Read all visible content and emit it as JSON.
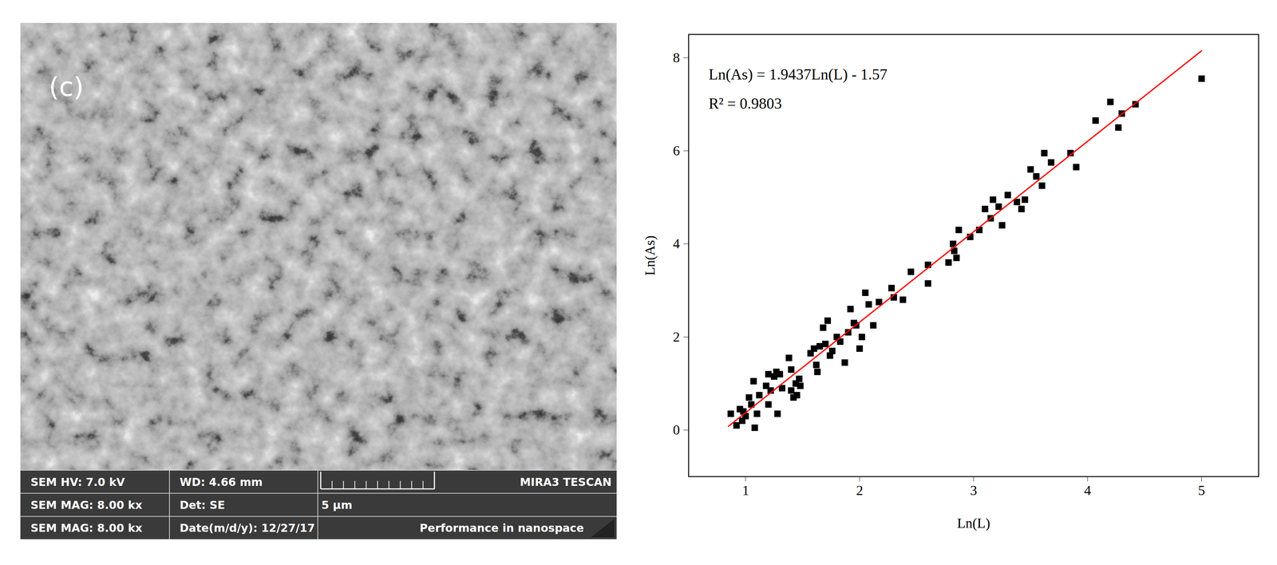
{
  "sem_image": {
    "panel_label": "(c)",
    "info_bar": [
      [
        "SEM HV: 7.0 kV",
        "WD: 4.66 mm",
        "MIRA3 TESCAN"
      ],
      [
        "SEM MAG: 8.00 kx",
        "Det: SE",
        "5 μm"
      ],
      [
        "SEM MAG: 8.00 kx",
        "Date(m/d/y): 12/27/17",
        "Performance in nanospace"
      ]
    ]
  },
  "chart_data": {
    "type": "scatter",
    "x_label": "Ln(L)",
    "y_label": "Ln(As)",
    "annotations": [
      "Ln(As) = 1.9437Ln(L) - 1.57",
      "R² = 0.9803"
    ],
    "x": [
      0.87,
      0.92,
      0.95,
      0.97,
      0.98,
      1.0,
      1.03,
      1.05,
      1.07,
      1.08,
      1.1,
      1.12,
      1.18,
      1.2,
      1.2,
      1.22,
      1.25,
      1.27,
      1.28,
      1.3,
      1.32,
      1.38,
      1.4,
      1.4,
      1.42,
      1.44,
      1.45,
      1.47,
      1.48,
      1.57,
      1.6,
      1.62,
      1.63,
      1.65,
      1.68,
      1.7,
      1.72,
      1.74,
      1.76,
      1.8,
      1.83,
      1.87,
      1.9,
      1.92,
      1.95,
      1.97,
      2.0,
      2.02,
      2.05,
      2.08,
      2.12,
      2.17,
      2.28,
      2.3,
      2.38,
      2.45,
      2.6,
      2.6,
      2.78,
      2.82,
      2.83,
      2.85,
      2.87,
      2.97,
      3.05,
      3.1,
      3.15,
      3.17,
      3.22,
      3.25,
      3.3,
      3.38,
      3.42,
      3.45,
      3.5,
      3.55,
      3.6,
      3.62,
      3.68,
      3.85,
      3.9,
      4.07,
      4.2,
      4.27,
      4.3,
      4.42,
      5.0
    ],
    "values": [
      0.35,
      0.1,
      0.45,
      0.2,
      0.4,
      0.3,
      0.7,
      0.55,
      1.05,
      0.05,
      0.35,
      0.75,
      0.95,
      1.2,
      0.55,
      0.85,
      1.15,
      1.25,
      0.35,
      1.2,
      0.9,
      1.55,
      1.3,
      0.85,
      0.7,
      1.0,
      0.75,
      1.1,
      0.95,
      1.65,
      1.75,
      1.4,
      1.25,
      1.8,
      2.2,
      1.85,
      2.35,
      1.6,
      1.7,
      2.0,
      1.9,
      1.45,
      2.1,
      2.6,
      2.3,
      2.25,
      1.75,
      2.0,
      2.95,
      2.7,
      2.25,
      2.75,
      3.05,
      2.85,
      2.8,
      3.4,
      3.55,
      3.15,
      3.6,
      4.0,
      3.85,
      3.7,
      4.3,
      4.15,
      4.3,
      4.75,
      4.55,
      4.95,
      4.8,
      4.4,
      5.05,
      4.9,
      4.75,
      4.95,
      5.6,
      5.45,
      5.25,
      5.95,
      5.75,
      5.95,
      5.65,
      6.65,
      7.05,
      6.5,
      6.8,
      7.0,
      7.55
    ],
    "color": "#000000",
    "marker": "square",
    "fit": {
      "type": "line",
      "x": [
        0.85,
        5.0
      ],
      "values": [
        0.082145,
        8.1485
      ],
      "color": "#ff0000"
    },
    "xlim": [
      0.5,
      5.5
    ],
    "xticks": [
      1,
      2,
      3,
      4,
      5
    ],
    "ylim": [
      -1,
      8.5
    ],
    "yticks": [
      0,
      2,
      4,
      6,
      8
    ],
    "grid": false
  }
}
